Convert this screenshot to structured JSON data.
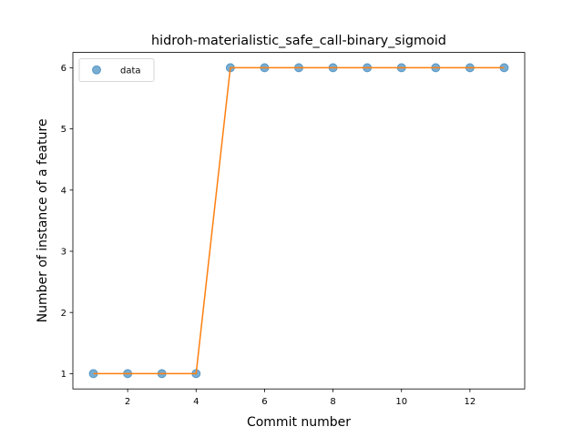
{
  "chart_data": {
    "type": "line",
    "title": "hidroh-materialistic_safe_call-binary_sigmoid",
    "xlabel": "Commit number",
    "ylabel": "Number of instance of a feature",
    "xlim": [
      0.4,
      13.6
    ],
    "ylim": [
      0.75,
      6.25
    ],
    "xticks": [
      2,
      4,
      6,
      8,
      10,
      12
    ],
    "yticks": [
      1,
      2,
      3,
      4,
      5,
      6
    ],
    "grid": false,
    "legend_position": "upper-left",
    "series": [
      {
        "name": "data",
        "kind": "scatter",
        "color": "#1f77b4",
        "alpha": 0.6,
        "x": [
          1,
          2,
          3,
          4,
          5,
          6,
          7,
          8,
          9,
          10,
          11,
          12,
          13
        ],
        "y": [
          1,
          1,
          1,
          1,
          6,
          6,
          6,
          6,
          6,
          6,
          6,
          6,
          6
        ]
      },
      {
        "kind": "line",
        "color": "#ff7f0e",
        "x": [
          1,
          2,
          3,
          4,
          5,
          6,
          7,
          8,
          9,
          10,
          11,
          12,
          13
        ],
        "y": [
          1,
          1,
          1,
          1,
          6,
          6,
          6,
          6,
          6,
          6,
          6,
          6,
          6
        ]
      }
    ]
  }
}
